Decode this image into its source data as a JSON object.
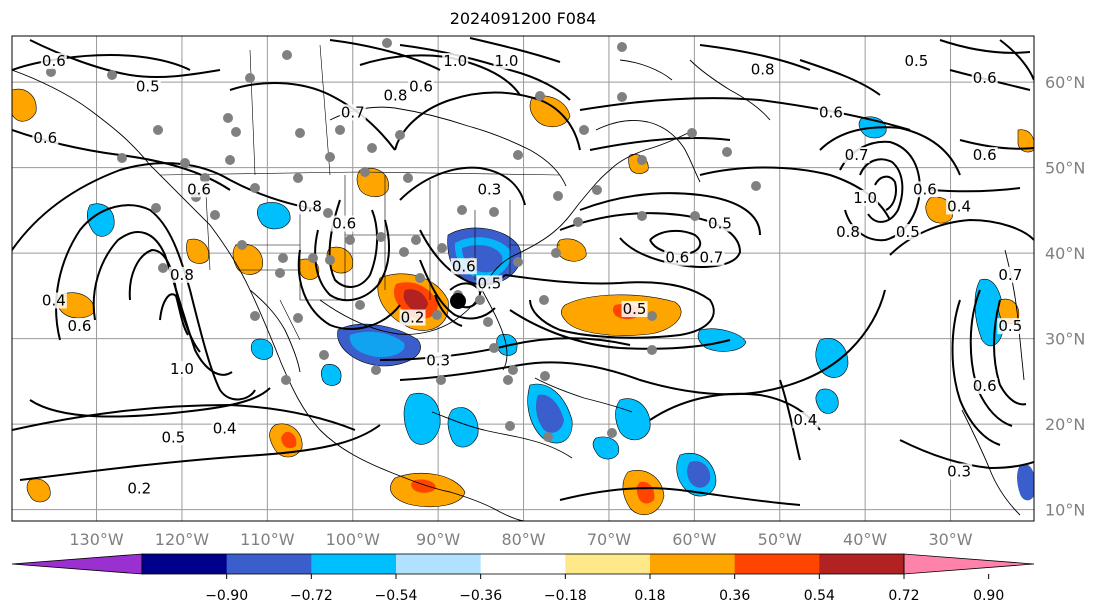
{
  "title": "2024091200 F084",
  "lat_labels": [
    {
      "label": "60°N",
      "lat": 60
    },
    {
      "label": "50°N",
      "lat": 50
    },
    {
      "label": "40°N",
      "lat": 40
    },
    {
      "label": "30°N",
      "lat": 30
    },
    {
      "label": "20°N",
      "lat": 20
    },
    {
      "label": "10°N",
      "lat": 10
    }
  ],
  "lon_labels": [
    {
      "label": "130°W",
      "lon": -130
    },
    {
      "label": "120°W",
      "lon": -120
    },
    {
      "label": "110°W",
      "lon": -110
    },
    {
      "label": "100°W",
      "lon": -100
    },
    {
      "label": "90°W",
      "lon": -90
    },
    {
      "label": "80°W",
      "lon": -80
    },
    {
      "label": "70°W",
      "lon": -70
    },
    {
      "label": "60°W",
      "lon": -60
    },
    {
      "label": "50°W",
      "lon": -50
    },
    {
      "label": "40°W",
      "lon": -40
    },
    {
      "label": "30°W",
      "lon": -30
    }
  ],
  "colorbar": {
    "ticks": [
      "−0.90",
      "−0.72",
      "−0.54",
      "−0.36",
      "−0.18",
      "0.18",
      "0.36",
      "0.54",
      "0.72",
      "0.90"
    ],
    "colors": [
      "#9b30d0",
      "#00008b",
      "#3a5fcd",
      "#00bfff",
      "#b0e2ff",
      "#ffffff",
      "#ffe88a",
      "#ffa500",
      "#ff4500",
      "#b22222",
      "#ff82ab"
    ]
  },
  "contour_labels": [
    {
      "text": "0.6",
      "lon": -135,
      "lat": 62
    },
    {
      "text": "0.5",
      "lon": -124,
      "lat": 59
    },
    {
      "text": "0.6",
      "lon": -136,
      "lat": 53
    },
    {
      "text": "0.6",
      "lon": -118,
      "lat": 47
    },
    {
      "text": "0.7",
      "lon": -100,
      "lat": 56
    },
    {
      "text": "0.8",
      "lon": -95,
      "lat": 58
    },
    {
      "text": "0.6",
      "lon": -92,
      "lat": 59
    },
    {
      "text": "1.0",
      "lon": -88,
      "lat": 62
    },
    {
      "text": "1.0",
      "lon": -82,
      "lat": 62
    },
    {
      "text": "0.8",
      "lon": -105,
      "lat": 45
    },
    {
      "text": "0.6",
      "lon": -101,
      "lat": 43
    },
    {
      "text": "0.3",
      "lon": -84,
      "lat": 47
    },
    {
      "text": "0.8",
      "lon": -52,
      "lat": 61
    },
    {
      "text": "0.5",
      "lon": -34,
      "lat": 62
    },
    {
      "text": "0.6",
      "lon": -44,
      "lat": 56
    },
    {
      "text": "0.6",
      "lon": -26,
      "lat": 60
    },
    {
      "text": "0.7",
      "lon": -41,
      "lat": 51
    },
    {
      "text": "0.6",
      "lon": -26,
      "lat": 51
    },
    {
      "text": "1.0",
      "lon": -40,
      "lat": 46
    },
    {
      "text": "0.6",
      "lon": -33,
      "lat": 47
    },
    {
      "text": "0.4",
      "lon": -29,
      "lat": 45
    },
    {
      "text": "0.8",
      "lon": -42,
      "lat": 42
    },
    {
      "text": "0.5",
      "lon": -35,
      "lat": 42
    },
    {
      "text": "0.5",
      "lon": -57,
      "lat": 43
    },
    {
      "text": "0.7",
      "lon": -58,
      "lat": 39
    },
    {
      "text": "0.6",
      "lon": -62,
      "lat": 39
    },
    {
      "text": "0.8",
      "lon": -120,
      "lat": 37
    },
    {
      "text": "0.4",
      "lon": -135,
      "lat": 34
    },
    {
      "text": "0.6",
      "lon": -132,
      "lat": 31
    },
    {
      "text": "1.0",
      "lon": -120,
      "lat": 26
    },
    {
      "text": "0.5",
      "lon": -121,
      "lat": 18
    },
    {
      "text": "0.4",
      "lon": -115,
      "lat": 19
    },
    {
      "text": "0.2",
      "lon": -125,
      "lat": 12
    },
    {
      "text": "0.6",
      "lon": -87,
      "lat": 38
    },
    {
      "text": "0.5",
      "lon": -84,
      "lat": 36
    },
    {
      "text": "0.2",
      "lon": -93,
      "lat": 32
    },
    {
      "text": "0.3",
      "lon": -90,
      "lat": 27
    },
    {
      "text": "0.5",
      "lon": -67,
      "lat": 33
    },
    {
      "text": "0.4",
      "lon": -47,
      "lat": 20
    },
    {
      "text": "0.3",
      "lon": -29,
      "lat": 14
    },
    {
      "text": "0.7",
      "lon": -23,
      "lat": 37
    },
    {
      "text": "0.5",
      "lon": -23,
      "lat": 31
    },
    {
      "text": "0.6",
      "lon": -26,
      "lat": 24
    }
  ]
}
